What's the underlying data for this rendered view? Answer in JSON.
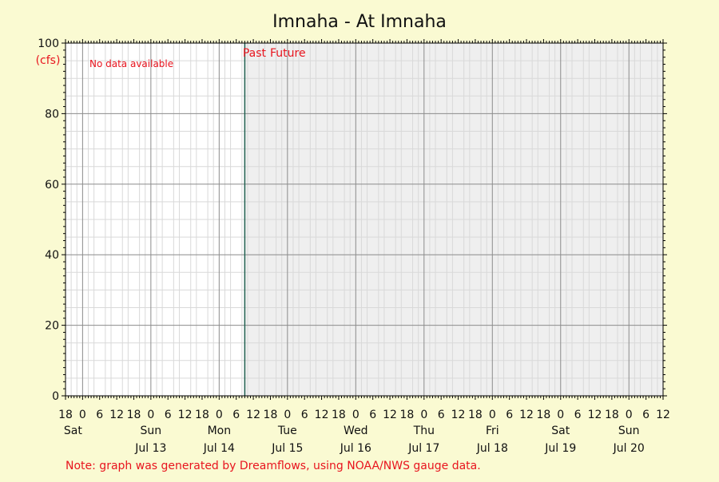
{
  "chart_data": {
    "type": "line",
    "title": "Imnaha - At Imnaha",
    "yunit": "(cfs)",
    "ylim": [
      0,
      100
    ],
    "yticks": [
      0,
      20,
      40,
      60,
      80,
      100
    ],
    "x_start": "2025-07-12T18:00",
    "x_end": "2025-07-21T12:00",
    "now": "2025-07-15T09:00",
    "x_tick_hours": [
      "18",
      "0",
      "6",
      "12",
      "18",
      "0",
      "6",
      "12",
      "18",
      "0",
      "6",
      "12",
      "18",
      "0",
      "6",
      "12",
      "18",
      "0",
      "6",
      "12",
      "18",
      "0",
      "6",
      "12",
      "18",
      "0",
      "6",
      "12",
      "18",
      "0",
      "6",
      "12",
      "18",
      "0",
      "6",
      "12"
    ],
    "day_labels": [
      {
        "day": "Sat",
        "date": ""
      },
      {
        "day": "Sun",
        "date": "Jul 13"
      },
      {
        "day": "Mon",
        "date": "Jul 14"
      },
      {
        "day": "Tue",
        "date": "Jul 15"
      },
      {
        "day": "Wed",
        "date": "Jul 16"
      },
      {
        "day": "Thu",
        "date": "Jul 17"
      },
      {
        "day": "Fri",
        "date": "Jul 18"
      },
      {
        "day": "Sat",
        "date": "Jul 19"
      },
      {
        "day": "Sun",
        "date": "Jul 20"
      }
    ],
    "past_label": "Past",
    "future_label": "Future",
    "no_data_label": "No data available",
    "series": [],
    "grid": true,
    "colors": {
      "background": "#fafad2",
      "plot_past": "#ffffff",
      "plot_future": "#efefef",
      "major_grid": "#8c8c8c",
      "minor_grid": "#d9d9d9",
      "now_line": "#1f5f4f",
      "annotation": "#e8141e"
    }
  },
  "footer_note": "Note: graph was generated by Dreamflows, using NOAA/NWS gauge data."
}
